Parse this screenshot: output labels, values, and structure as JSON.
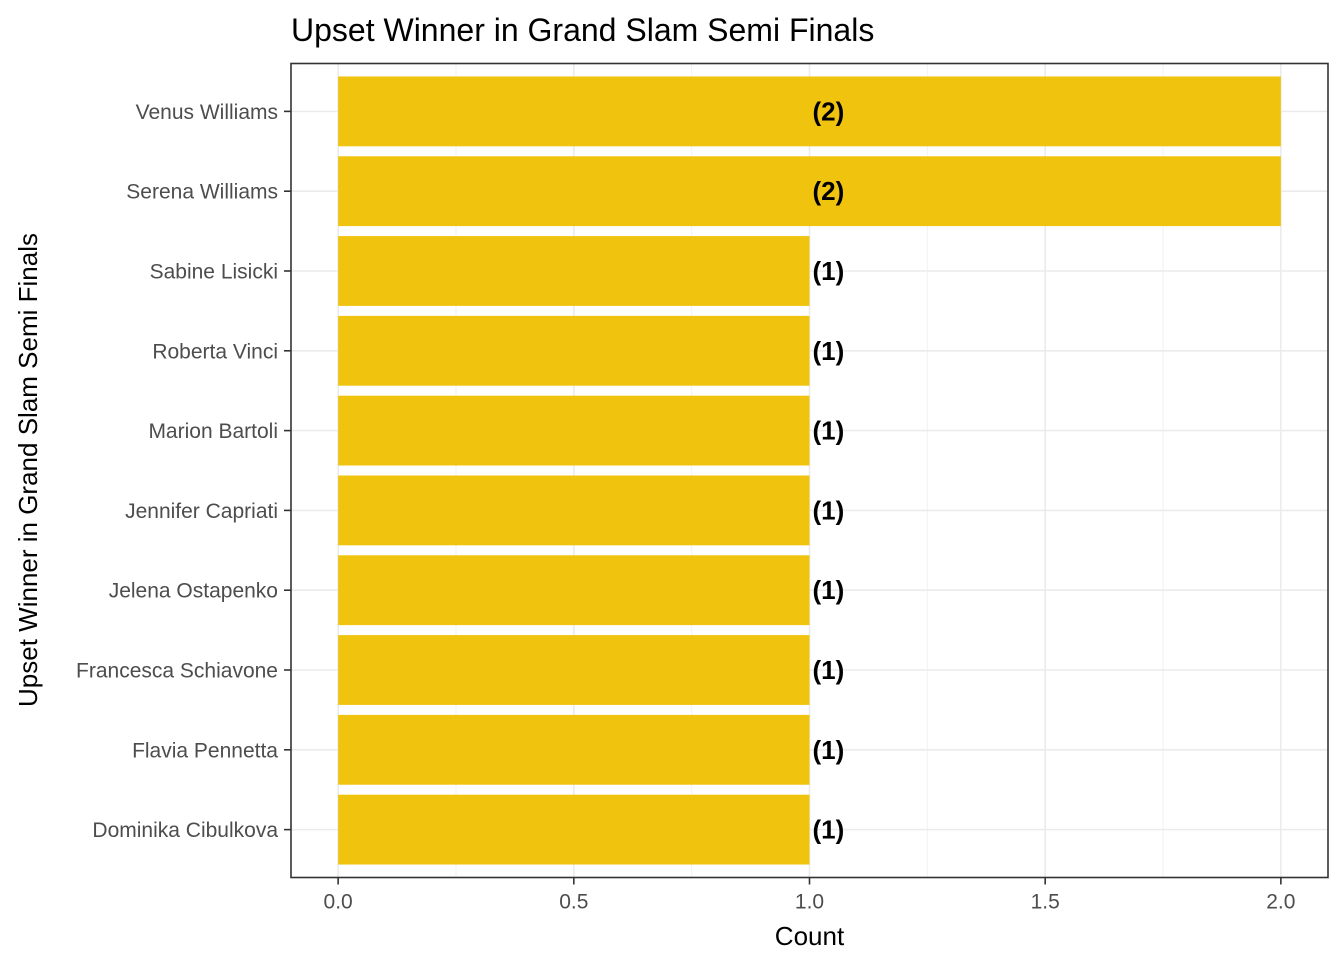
{
  "chart_data": {
    "type": "bar",
    "orientation": "horizontal",
    "title": "Upset Winner in Grand Slam Semi Finals",
    "xlabel": "Count",
    "ylabel": "Upset Winner in Grand Slam Semi Finals",
    "categories": [
      "Venus Williams",
      "Serena Williams",
      "Sabine Lisicki",
      "Roberta Vinci",
      "Marion Bartoli",
      "Jennifer Capriati",
      "Jelena Ostapenko",
      "Francesca Schiavone",
      "Flavia Pennetta",
      "Dominika Cibulkova"
    ],
    "values": [
      2,
      2,
      1,
      1,
      1,
      1,
      1,
      1,
      1,
      1
    ],
    "data_labels": [
      "(2)",
      "(2)",
      "(1)",
      "(1)",
      "(1)",
      "(1)",
      "(1)",
      "(1)",
      "(1)",
      "(1)"
    ],
    "xlim": [
      -0.1,
      2.1
    ],
    "xticks": [
      0.0,
      0.5,
      1.0,
      1.5,
      2.0
    ],
    "xtick_labels": [
      "0.0",
      "0.5",
      "1.0",
      "1.5",
      "2.0"
    ],
    "grid": true,
    "bar_color": "#F0C30F"
  }
}
